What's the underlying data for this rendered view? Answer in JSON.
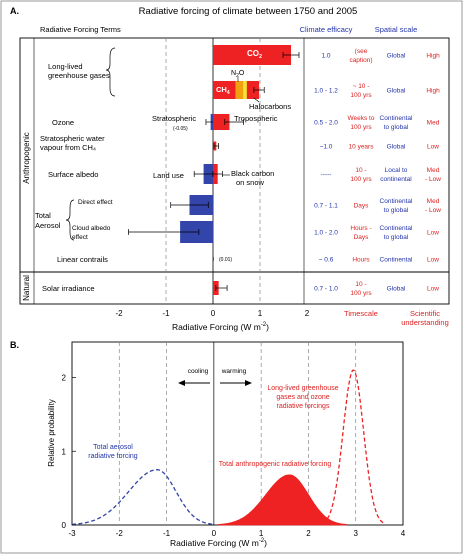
{
  "panel_a": {
    "label": "A.",
    "title": "Radiative forcing of climate between 1750 and 2005",
    "headers": {
      "terms": "Radiative Forcing Terms",
      "efficacy": "Climate efficacy",
      "spatial": "Spatial scale"
    },
    "side_labels": {
      "anthropogenic": "Anthropogenic",
      "natural": "Natural"
    },
    "bottom_labels": {
      "timescale": "Timescale",
      "understanding_1": "Scientific",
      "understanding_2": "understanding"
    },
    "xaxis_title": "Radiative Forcing  (W m",
    "xaxis_sup": "-2",
    "xaxis_close": ")",
    "rows": [
      {
        "term1": "Long-lived",
        "term2": "greenhouse gases",
        "efficacy": "1.0",
        "time1": "(see",
        "time2": "caption)",
        "spatial1": "Global",
        "spatial2": "",
        "und1": "High",
        "und2": ""
      },
      {
        "term1": "",
        "term2": "",
        "efficacy": "1.0 - 1.2",
        "time1": "~ 10 -",
        "time2": "100 yrs",
        "spatial1": "Global",
        "spatial2": "",
        "und1": "High",
        "und2": ""
      },
      {
        "term1": "Ozone",
        "term2": "",
        "efficacy": "0.5 - 2.0",
        "time1": "Weeks to",
        "time2": "100 yrs",
        "spatial1": "Continental",
        "spatial2": "to global",
        "und1": "Med",
        "und2": ""
      },
      {
        "term1": "Stratospheric water",
        "term2": "vapour from CH₄",
        "efficacy": "~1.0",
        "time1": "10 years",
        "time2": "",
        "spatial1": "Global",
        "spatial2": "",
        "und1": "Low",
        "und2": ""
      },
      {
        "term1": "Surface albedo",
        "term2": "",
        "efficacy": "-----",
        "time1": "10 -",
        "time2": "100 yrs",
        "spatial1": "Local to",
        "spatial2": "continental",
        "und1": "Med",
        "und2": "- Low"
      },
      {
        "term1": "Direct effect",
        "term2": "",
        "efficacy": "0.7 - 1.1",
        "time1": "Days",
        "time2": "",
        "spatial1": "Continental",
        "spatial2": "to global",
        "und1": "Med",
        "und2": "- Low"
      },
      {
        "term1": "Cloud albedo",
        "term2": "effect",
        "efficacy": "1.0 - 2.0",
        "time1": "Hours -",
        "time2": "Days",
        "spatial1": "Continental",
        "spatial2": "to global",
        "und1": "Low",
        "und2": ""
      },
      {
        "term1": "Linear  contrails",
        "term2": "",
        "efficacy": "~ 0.6",
        "time1": "Hours",
        "time2": "",
        "spatial1": "Continental",
        "spatial2": "",
        "und1": "Low",
        "und2": ""
      },
      {
        "term1": "Solar irradiance",
        "term2": "",
        "efficacy": "0.7 - 1.0",
        "time1": "10 -",
        "time2": "100 yrs",
        "spatial1": "Global",
        "spatial2": "",
        "und1": "Low",
        "und2": ""
      }
    ],
    "aerosol_label_1": "Total",
    "aerosol_label_2": "Aerosol",
    "annotations": {
      "co2": "CO",
      "co2_sub": "2",
      "ch4": "CH",
      "ch4_sub": "4",
      "n2o": "N",
      "n2o_sub": "2",
      "n2o_end": "O",
      "halocarbons": "Halocarbons",
      "stratospheric": "Stratospheric",
      "tropospheric": "Tropospheric",
      "strat_value": "(-0.05)",
      "land_use": "Land use",
      "black_carbon_1": "Black carbon",
      "black_carbon_2": "on snow",
      "contrails_value": "(0.01)"
    }
  },
  "panel_b": {
    "label": "B.",
    "ylabel": "Relative probability",
    "xlabel": "Radiative Forcing  (W m",
    "xlabel_sup": "-2",
    "xlabel_close": ")",
    "cooling": "cooling",
    "warming": "warming",
    "aerosol_1": "Total aerosol",
    "aerosol_2": "radiative forcing",
    "ghg_1": "Long-lived greenhouse",
    "ghg_2": "gases and ozone",
    "ghg_3": "radiative forcings",
    "anthro": "Total anthropogenic radiative forcing"
  },
  "colors": {
    "warming": "#ee2222",
    "cooling": "#3344aa",
    "n2o": "#f0a010",
    "halocarbon": "#f4e430",
    "blue_text": "#2233aa",
    "red_text": "#dd2222",
    "grid": "#888888"
  },
  "chart_data": [
    {
      "type": "bar",
      "orientation": "horizontal",
      "title": "Radiative forcing of climate between 1750 and 2005",
      "xlabel": "Radiative Forcing (W m-2)",
      "xlim": [
        -2,
        2
      ],
      "xticks": [
        -2,
        -1,
        0,
        1,
        2
      ],
      "grid": true,
      "bars": [
        {
          "name": "CO2",
          "row": 0,
          "start": 0,
          "end": 1.66,
          "err_low": 1.49,
          "err_high": 1.83,
          "color": "#ee2222"
        },
        {
          "name": "CH4",
          "row": 1,
          "start": 0,
          "end": 0.48,
          "color": "#ee2222"
        },
        {
          "name": "N2O",
          "row": 1,
          "start": 0.48,
          "end": 0.64,
          "color": "#f0a010"
        },
        {
          "name": "Halocarbons",
          "row": 1,
          "start": 0.64,
          "end": 0.98,
          "err_low": 0.87,
          "err_high": 1.09,
          "color": "#ee2222"
        },
        {
          "name": "Ozone stratospheric",
          "row": 2,
          "start": -0.05,
          "end": 0,
          "err_low": -0.15,
          "err_high": 0.05,
          "color": "#3344aa"
        },
        {
          "name": "Ozone tropospheric",
          "row": 2,
          "start": 0,
          "end": 0.35,
          "err_low": 0.25,
          "err_high": 0.65,
          "color": "#ee2222"
        },
        {
          "name": "Stratospheric water vapour from CH4",
          "row": 3,
          "start": 0,
          "end": 0.07,
          "err_low": 0.02,
          "err_high": 0.12,
          "color": "#ee2222"
        },
        {
          "name": "Land use",
          "row": 4,
          "start": -0.2,
          "end": 0,
          "err_low": -0.4,
          "err_high": 0,
          "color": "#3344aa"
        },
        {
          "name": "Black carbon on snow",
          "row": 4,
          "start": 0,
          "end": 0.1,
          "err_low": 0,
          "err_high": 0.2,
          "color": "#ee2222"
        },
        {
          "name": "Aerosol direct effect",
          "row": 5,
          "start": -0.5,
          "end": 0,
          "err_low": -0.9,
          "err_high": -0.1,
          "color": "#3344aa"
        },
        {
          "name": "Aerosol cloud albedo effect",
          "row": 6,
          "start": -0.7,
          "end": 0,
          "err_low": -1.8,
          "err_high": -0.3,
          "color": "#3344aa"
        },
        {
          "name": "Linear contrails",
          "row": 7,
          "start": 0,
          "end": 0.01,
          "color": "#ee2222"
        },
        {
          "name": "Solar irradiance",
          "row": 8,
          "start": 0,
          "end": 0.12,
          "err_low": 0.06,
          "err_high": 0.3,
          "color": "#ee2222"
        }
      ]
    },
    {
      "type": "area",
      "xlabel": "Radiative Forcing (W m-2)",
      "ylabel": "Relative probability",
      "xlim": [
        -3,
        4
      ],
      "ylim": [
        0,
        2.4
      ],
      "xticks": [
        -3,
        -2,
        -1,
        0,
        1,
        2,
        3,
        4
      ],
      "yticks": [
        0,
        1,
        2
      ],
      "series": [
        {
          "name": "Total aerosol radiative forcing",
          "style": "dashed",
          "color": "#3344aa",
          "peak_x": -1.2,
          "peak_y": 0.75,
          "x_range": [
            -3,
            0
          ]
        },
        {
          "name": "Long-lived greenhouse gases and ozone radiative forcings",
          "style": "dashed",
          "color": "#ee2222",
          "peak_x": 2.95,
          "peak_y": 2.1,
          "x_range": [
            2.3,
            3.6
          ]
        },
        {
          "name": "Total anthropogenic radiative forcing",
          "style": "filled",
          "color": "#ee2222",
          "peak_x": 1.6,
          "peak_y": 0.68,
          "x_range": [
            0.1,
            2.8
          ]
        }
      ]
    }
  ]
}
